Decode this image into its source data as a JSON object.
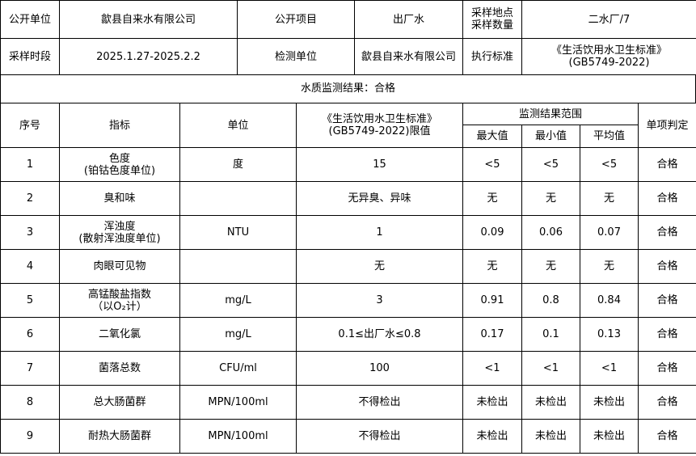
{
  "info": {
    "publisher_label": "公开单位",
    "publisher": "歙县自来水有限公司",
    "item_label": "公开项目",
    "item": "出厂水",
    "site_label": "采样地点\n采样数量",
    "site_line1": "采样地点",
    "site_line2": "采样数量",
    "site": "二水厂/7",
    "period_label": "采样时段",
    "period": "2025.1.27-2025.2.2",
    "lab_label": "检测单位",
    "lab": "歙县自来水有限公司",
    "standard_label": "执行标准",
    "standard_line1": "《生活饮用水卫生标准》",
    "standard_line2": "(GB5749-2022)"
  },
  "result_summary": "水质监测结果：合格",
  "headers": {
    "no": "序号",
    "indicator": "指标",
    "unit": "单位",
    "limit_line1": "《生活饮用水卫生标准》",
    "limit_line2": "(GB5749-2022)限值",
    "range": "监测结果范围",
    "max": "最大值",
    "min": "最小值",
    "avg": "平均值",
    "verdict": "单项判定"
  },
  "rows": [
    {
      "no": "1",
      "name": "色度",
      "name2": "(铂钴色度单位)",
      "unit": "度",
      "limit": "15",
      "max": "<5",
      "min": "<5",
      "avg": "<5",
      "verdict": "合格"
    },
    {
      "no": "2",
      "name": "臭和味",
      "name2": "",
      "unit": "",
      "limit": "无异臭、异味",
      "max": "无",
      "min": "无",
      "avg": "无",
      "verdict": "合格"
    },
    {
      "no": "3",
      "name": "浑浊度",
      "name2": "(散射浑浊度单位)",
      "unit": "NTU",
      "limit": "1",
      "max": "0.09",
      "min": "0.06",
      "avg": "0.07",
      "verdict": "合格"
    },
    {
      "no": "4",
      "name": "肉眼可见物",
      "name2": "",
      "unit": "",
      "limit": "无",
      "max": "无",
      "min": "无",
      "avg": "无",
      "verdict": "合格"
    },
    {
      "no": "5",
      "name": "高锰酸盐指数",
      "name2": "（以O₂计）",
      "unit": "mg/L",
      "limit": "3",
      "max": "0.91",
      "min": "0.8",
      "avg": "0.84",
      "verdict": "合格"
    },
    {
      "no": "6",
      "name": "二氧化氯",
      "name2": "",
      "unit": "mg/L",
      "limit": "0.1≤出厂水≤0.8",
      "max": "0.17",
      "min": "0.1",
      "avg": "0.13",
      "verdict": "合格"
    },
    {
      "no": "7",
      "name": "菌落总数",
      "name2": "",
      "unit": "CFU/ml",
      "limit": "100",
      "max": "<1",
      "min": "<1",
      "avg": "<1",
      "verdict": "合格"
    },
    {
      "no": "8",
      "name": "总大肠菌群",
      "name2": "",
      "unit": "MPN/100ml",
      "limit": "不得检出",
      "max": "未检出",
      "min": "未检出",
      "avg": "未检出",
      "verdict": "合格"
    },
    {
      "no": "9",
      "name": "耐热大肠菌群",
      "name2": "",
      "unit": "MPN/100ml",
      "limit": "不得检出",
      "max": "未检出",
      "min": "未检出",
      "avg": "未检出",
      "verdict": "合格"
    }
  ]
}
